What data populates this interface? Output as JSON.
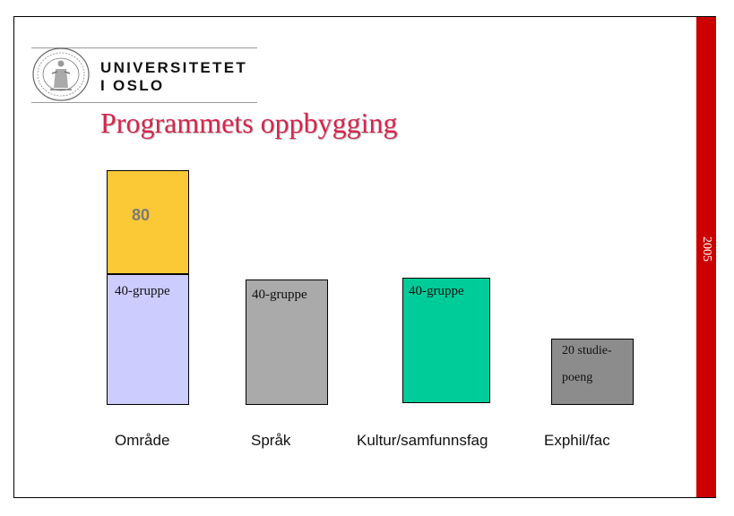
{
  "header": {
    "logo": {
      "line1": "UNIVERSITETET",
      "line2": "I OSLO"
    },
    "title": "Programmets oppbygging"
  },
  "sidebar": {
    "year": "2005"
  },
  "columns": [
    {
      "category": "Område",
      "top_value": "80",
      "group_label": "40-gruppe",
      "top_color": "#fbc935",
      "bottom_color": "#ccccff"
    },
    {
      "category": "Språk",
      "group_label": "40-gruppe",
      "color": "#aaaaaa"
    },
    {
      "category": "Kultur/samfunnsfag",
      "group_label": "40-gruppe",
      "color": "#00cc99"
    },
    {
      "category": "Exphil/fac",
      "label_line1": "20 studie-",
      "label_line2": "poeng",
      "color": "#8c8c8c"
    }
  ],
  "colors": {
    "title": "#d6254d",
    "sidebar": "#cc0000"
  }
}
